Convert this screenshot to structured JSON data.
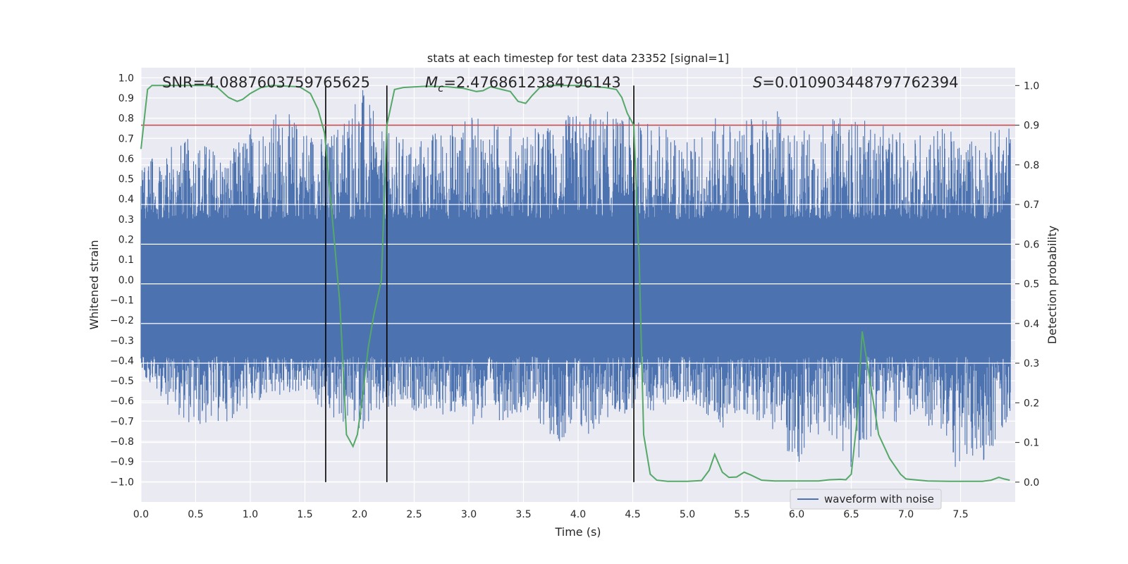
{
  "chart_data": {
    "type": "line",
    "title": "stats at each timestep for test data 23352 [signal=1]",
    "xlabel": "Time (s)",
    "ylabel": "Whitened strain",
    "ylabel_right": "Detection probability",
    "xlim": [
      0.0,
      8.0
    ],
    "ylim": [
      -1.1,
      1.05
    ],
    "ylim_right": [
      -0.05,
      1.045
    ],
    "x_ticks": [
      "0.0",
      "0.5",
      "1.0",
      "1.5",
      "2.0",
      "2.5",
      "3.0",
      "3.5",
      "4.0",
      "4.5",
      "5.0",
      "5.5",
      "6.0",
      "6.5",
      "7.0",
      "7.5"
    ],
    "y_ticks": [
      "1.0",
      "0.9",
      "0.8",
      "0.7",
      "0.6",
      "0.5",
      "0.4",
      "0.3",
      "0.2",
      "0.1",
      "0.0",
      "-0.1",
      "-0.2",
      "-0.3",
      "-0.4",
      "-0.5",
      "-0.6",
      "-0.7",
      "-0.8",
      "-0.9",
      "-1.0"
    ],
    "y_ticks_right": [
      "1.0",
      "0.9",
      "0.8",
      "0.7",
      "0.6",
      "0.5",
      "0.4",
      "0.3",
      "0.2",
      "0.1",
      "0.0"
    ],
    "annotations": {
      "snr_prefix": "SNR",
      "snr_value": "=4.0887603759765625",
      "mc_symbol": "M",
      "mc_sub": "c",
      "mc_value": "=2.4768612384796143",
      "s_symbol": "S",
      "s_value": "=0.010903448797762394"
    },
    "legend": {
      "position": "lower-right",
      "entries": [
        "waveform with noise"
      ]
    },
    "threshold": {
      "value": 0.9,
      "axis": "right",
      "color": "#c44e52"
    },
    "vertical_lines": [
      1.69,
      2.25,
      4.51
    ],
    "series": [
      {
        "name": "waveform with noise",
        "axis": "left",
        "color": "#4c72b0",
        "envelope": {
          "x": [
            0.0,
            0.2,
            0.5,
            0.8,
            1.0,
            1.2,
            1.5,
            1.7,
            2.0,
            2.2,
            2.5,
            2.8,
            3.0,
            3.3,
            3.5,
            3.8,
            4.0,
            4.3,
            4.5,
            4.7,
            5.0,
            5.3,
            5.5,
            5.8,
            6.0,
            6.3,
            6.5,
            6.7,
            7.0,
            7.3,
            7.5,
            7.8,
            8.0
          ],
          "max": [
            0.6,
            0.65,
            0.72,
            0.62,
            0.78,
            0.85,
            0.8,
            0.7,
            1.0,
            0.74,
            0.7,
            0.78,
            0.82,
            0.78,
            0.75,
            0.78,
            0.85,
            0.84,
            0.8,
            0.8,
            0.7,
            0.82,
            0.78,
            0.85,
            0.75,
            0.8,
            0.82,
            0.78,
            0.72,
            0.78,
            0.7,
            0.75,
            0.8
          ],
          "min": [
            -0.45,
            -0.6,
            -0.75,
            -0.7,
            -0.65,
            -0.6,
            -0.55,
            -0.7,
            -0.75,
            -0.7,
            -0.65,
            -0.68,
            -0.72,
            -0.7,
            -0.65,
            -0.8,
            -0.82,
            -0.7,
            -0.65,
            -0.65,
            -0.6,
            -0.75,
            -0.65,
            -0.75,
            -0.95,
            -0.75,
            -1.0,
            -0.75,
            -0.7,
            -0.75,
            -1.0,
            -0.85,
            -0.65
          ]
        }
      },
      {
        "name": "",
        "axis": "right",
        "color": "#55a868",
        "x": [
          0.0,
          0.06,
          0.1,
          0.16,
          0.25,
          0.35,
          0.5,
          0.62,
          0.7,
          0.8,
          0.88,
          0.93,
          1.0,
          1.1,
          1.2,
          1.3,
          1.35,
          1.45,
          1.55,
          1.62,
          1.68,
          1.74,
          1.82,
          1.88,
          1.94,
          1.98,
          2.03,
          2.08,
          2.13,
          2.2,
          2.25,
          2.32,
          2.4,
          2.6,
          2.8,
          2.95,
          3.07,
          3.13,
          3.2,
          3.3,
          3.38,
          3.45,
          3.52,
          3.58,
          3.65,
          3.75,
          3.85,
          4.0,
          4.25,
          4.35,
          4.4,
          4.45,
          4.51,
          4.56,
          4.6,
          4.66,
          4.72,
          4.82,
          5.0,
          5.13,
          5.2,
          5.25,
          5.32,
          5.38,
          5.45,
          5.52,
          5.58,
          5.68,
          5.8,
          6.0,
          6.2,
          6.3,
          6.4,
          6.45,
          6.5,
          6.55,
          6.6,
          6.68,
          6.75,
          6.85,
          6.95,
          7.0,
          7.2,
          7.4,
          7.6,
          7.7,
          7.78,
          7.85,
          7.9,
          7.95
        ],
        "y": [
          0.84,
          0.99,
          1.0,
          1.0,
          1.0,
          1.0,
          1.0,
          1.0,
          0.995,
          0.97,
          0.96,
          0.965,
          0.98,
          0.995,
          1.0,
          0.999,
          0.998,
          0.997,
          0.98,
          0.94,
          0.88,
          0.7,
          0.45,
          0.12,
          0.09,
          0.12,
          0.22,
          0.34,
          0.42,
          0.51,
          0.9,
          0.99,
          0.995,
          0.998,
          0.997,
          0.993,
          0.985,
          0.987,
          0.997,
          0.99,
          0.985,
          0.96,
          0.955,
          0.975,
          0.995,
          1.0,
          1.0,
          1.0,
          0.995,
          0.99,
          0.97,
          0.93,
          0.9,
          0.55,
          0.12,
          0.02,
          0.005,
          0.002,
          0.002,
          0.004,
          0.03,
          0.07,
          0.025,
          0.012,
          0.013,
          0.025,
          0.018,
          0.005,
          0.003,
          0.003,
          0.003,
          0.006,
          0.007,
          0.006,
          0.02,
          0.15,
          0.38,
          0.24,
          0.12,
          0.06,
          0.02,
          0.008,
          0.003,
          0.002,
          0.002,
          0.002,
          0.005,
          0.012,
          0.008,
          0.005
        ]
      }
    ]
  }
}
